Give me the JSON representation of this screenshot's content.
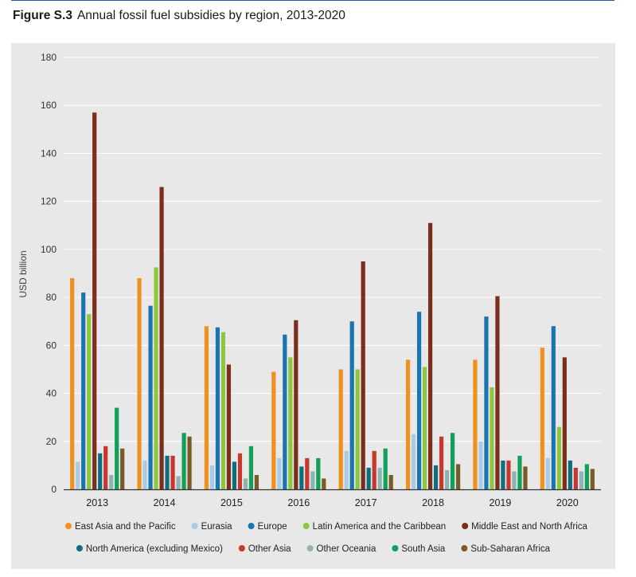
{
  "figure": {
    "number": "Figure S.3",
    "title": "Annual fossil fuel subsidies by region, 2013-2020"
  },
  "chart_data": {
    "type": "bar",
    "title": "Annual fossil fuel subsidies by region, 2013-2020",
    "xlabel": "",
    "ylabel": "USD billion",
    "ylim": [
      0,
      180
    ],
    "yticks": [
      0,
      20,
      40,
      60,
      80,
      100,
      120,
      140,
      160,
      180
    ],
    "grid": true,
    "legend_position": "bottom",
    "categories": [
      "2013",
      "2014",
      "2015",
      "2016",
      "2017",
      "2018",
      "2019",
      "2020"
    ],
    "series": [
      {
        "name": "East Asia and the Pacific",
        "color": "#f0901e",
        "values": [
          88,
          88,
          68,
          49,
          50,
          54,
          54,
          59
        ]
      },
      {
        "name": "Eurasia",
        "color": "#a9cbe8",
        "values": [
          11.5,
          12,
          10,
          13,
          16,
          23,
          20,
          13
        ]
      },
      {
        "name": "Europe",
        "color": "#1a74b0",
        "values": [
          82,
          76.5,
          67.5,
          64.5,
          70,
          74,
          72,
          68
        ]
      },
      {
        "name": "Latin America and the Caribbean",
        "color": "#8dc63f",
        "values": [
          73,
          92.5,
          65.5,
          55,
          50,
          51,
          42.5,
          26
        ]
      },
      {
        "name": "Middle East and North Africa",
        "color": "#7a2e1b",
        "values": [
          157,
          126,
          52,
          70.5,
          95,
          111,
          80.5,
          55
        ]
      },
      {
        "name": "North America (excluding Mexico)",
        "color": "#0f6e7e",
        "values": [
          15,
          14,
          11.5,
          9.5,
          9,
          10,
          12,
          12
        ]
      },
      {
        "name": "Other Asia",
        "color": "#c8372d",
        "values": [
          18,
          14,
          15,
          13,
          16,
          22,
          12,
          9
        ]
      },
      {
        "name": "Other Oceania",
        "color": "#8fb3b3",
        "values": [
          6,
          5.5,
          4.5,
          7.5,
          9,
          8,
          7.5,
          7.5
        ]
      },
      {
        "name": "South Asia",
        "color": "#10a05a",
        "values": [
          34,
          23.5,
          18,
          13,
          17,
          23.5,
          14,
          10.5
        ]
      },
      {
        "name": "Sub-Saharan Africa",
        "color": "#7b5a2a",
        "values": [
          17,
          22,
          6,
          4.5,
          6,
          10.5,
          9.5,
          8.5
        ]
      }
    ]
  }
}
